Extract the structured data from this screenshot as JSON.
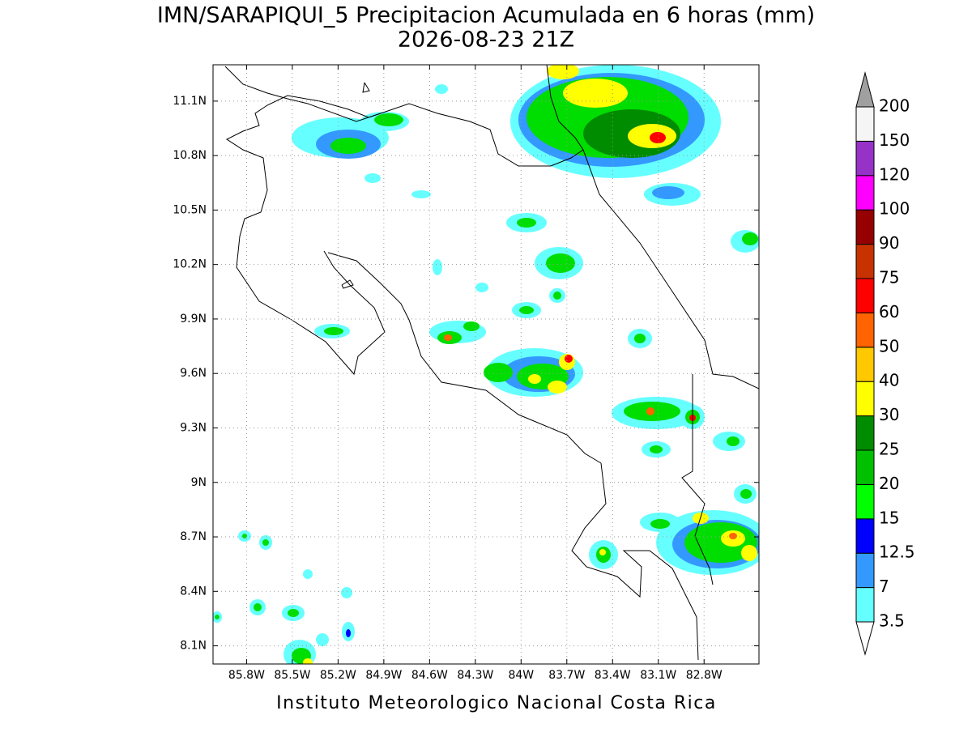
{
  "chart_data": {
    "type": "map",
    "title": "IMN/SARAPIQUI_5 Precipitacion Acumulada en 6 horas (mm)",
    "subtitle": "2026-08-23 21Z",
    "footer": "Instituto Meteorologico Nacional Costa Rica",
    "xlim": [
      -86.02,
      -82.44
    ],
    "ylim": [
      8.0,
      11.3
    ],
    "xticks": [
      {
        "value": -85.8,
        "label": "85.8W"
      },
      {
        "value": -85.5,
        "label": "85.5W"
      },
      {
        "value": -85.2,
        "label": "85.2W"
      },
      {
        "value": -84.9,
        "label": "84.9W"
      },
      {
        "value": -84.6,
        "label": "84.6W"
      },
      {
        "value": -84.3,
        "label": "84.3W"
      },
      {
        "value": -84.0,
        "label": "84W"
      },
      {
        "value": -83.7,
        "label": "83.7W"
      },
      {
        "value": -83.4,
        "label": "83.4W"
      },
      {
        "value": -83.1,
        "label": "83.1W"
      },
      {
        "value": -82.8,
        "label": "82.8W"
      }
    ],
    "yticks": [
      {
        "value": 11.1,
        "label": "11.1N"
      },
      {
        "value": 10.8,
        "label": "10.8N"
      },
      {
        "value": 10.5,
        "label": "10.5N"
      },
      {
        "value": 10.2,
        "label": "10.2N"
      },
      {
        "value": 9.9,
        "label": "9.9N"
      },
      {
        "value": 9.6,
        "label": "9.6N"
      },
      {
        "value": 9.3,
        "label": "9.3N"
      },
      {
        "value": 9.0,
        "label": "9N"
      },
      {
        "value": 8.7,
        "label": "8.7N"
      },
      {
        "value": 8.4,
        "label": "8.4N"
      },
      {
        "value": 8.1,
        "label": "8.1N"
      }
    ],
    "grid": true,
    "colorbar": {
      "levels": [
        3.5,
        7,
        12.5,
        15,
        20,
        25,
        30,
        40,
        50,
        60,
        75,
        90,
        100,
        120,
        150,
        200
      ],
      "colors": [
        "#ffffff",
        "#66ffff",
        "#3399ff",
        "#0000ff",
        "#00ff00",
        "#00c000",
        "#008c00",
        "#ffff00",
        "#ffc800",
        "#ff6400",
        "#ff0000",
        "#c83200",
        "#960000",
        "#ff00ff",
        "#9632c8",
        "#f5f5f5",
        "#a0a0a0"
      ]
    }
  }
}
